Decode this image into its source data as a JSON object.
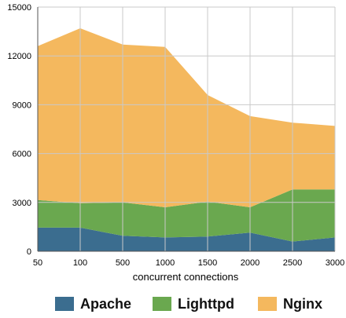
{
  "chart_data": {
    "type": "area",
    "stacked": true,
    "xlabel": "concurrent connections",
    "ylabel": "",
    "ylim": [
      0,
      15000
    ],
    "yticks": [
      "0",
      "3000",
      "6000",
      "9000",
      "12000",
      "15000"
    ],
    "categories": [
      "50",
      "100",
      "500",
      "1000",
      "1500",
      "2000",
      "2500",
      "3000"
    ],
    "grid": true,
    "legend_position": "bottom",
    "series": [
      {
        "name": "Apache",
        "color": "#3b6d8f",
        "values": [
          1450,
          1450,
          950,
          850,
          900,
          1150,
          600,
          850
        ]
      },
      {
        "name": "Lighttpd",
        "color": "#6aa84f",
        "values": [
          1700,
          1500,
          2050,
          1850,
          2150,
          1550,
          3200,
          2950
        ]
      },
      {
        "name": "Nginx",
        "color": "#f4b85e",
        "values": [
          9450,
          10750,
          9700,
          9850,
          6550,
          5600,
          4100,
          3900
        ]
      }
    ]
  }
}
